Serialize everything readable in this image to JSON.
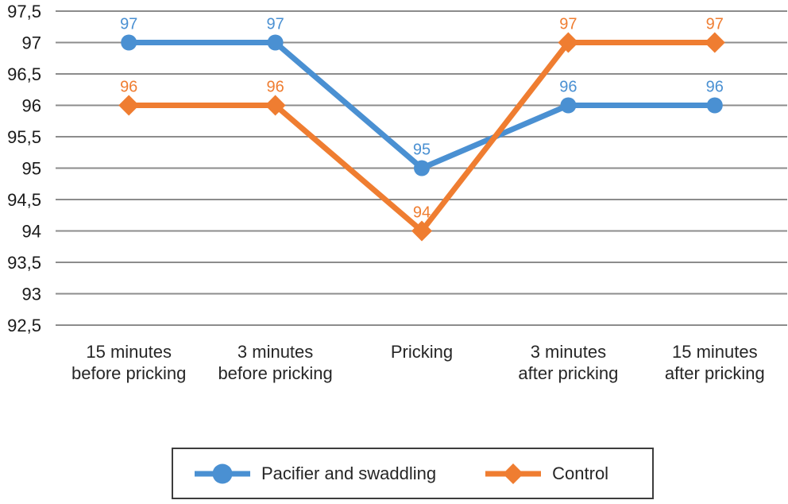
{
  "chart_data": {
    "type": "line",
    "categories": [
      "15 minutes\nbefore pricking",
      "3 minutes\nbefore pricking",
      "Pricking",
      "3 minutes\nafter pricking",
      "15 minutes\nafter pricking"
    ],
    "series": [
      {
        "name": "Pacifier and swaddling",
        "color": "#4a90d2",
        "marker": "circle",
        "values": [
          97,
          97,
          95,
          96,
          96
        ]
      },
      {
        "name": "Control",
        "color": "#ef7d31",
        "marker": "diamond",
        "values": [
          96,
          96,
          94,
          97,
          97
        ]
      }
    ],
    "y_ticks": {
      "values": [
        97.5,
        97,
        96.5,
        96,
        95.5,
        95,
        94.5,
        94,
        93.5,
        93,
        92.5
      ],
      "labels": [
        "97,5",
        "97",
        "96,5",
        "96",
        "95,5",
        "95",
        "94,5",
        "94",
        "93,5",
        "93",
        "92,5"
      ]
    },
    "ylim": [
      92.5,
      97.5
    ],
    "grid": "horizontal",
    "data_labels": true,
    "legend_position": "bottom",
    "title": "",
    "xlabel": "",
    "ylabel": ""
  },
  "styles": {
    "background": "#ffffff",
    "gridline_color": "#8c8c8c",
    "tick_label_color": "#1a1a1a",
    "axis_label_color": "#262626",
    "legend_border_color": "#3d3d3d",
    "legend_text_color": "#262626"
  }
}
